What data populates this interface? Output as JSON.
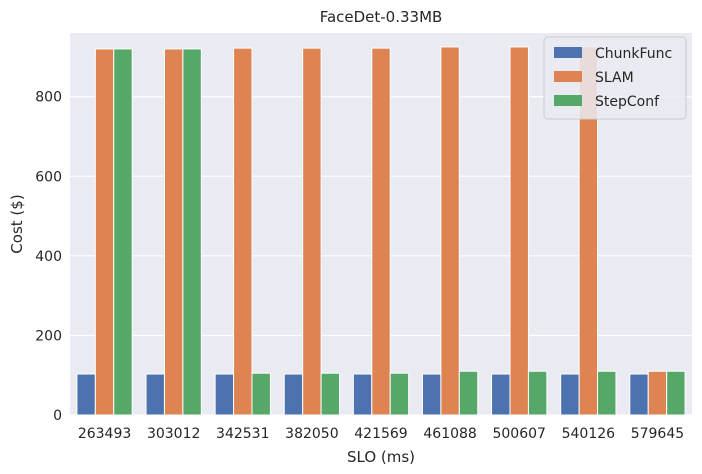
{
  "chart_data": {
    "type": "bar",
    "title": "FaceDet-0.33MB",
    "xlabel": "SLO (ms)",
    "ylabel": "Cost ($)",
    "categories": [
      "263493",
      "303012",
      "342531",
      "382050",
      "421569",
      "461088",
      "500607",
      "540126",
      "579645"
    ],
    "series": [
      {
        "name": "ChunkFunc",
        "color": "#4c72b0",
        "values": [
          103,
          103,
          103,
          103,
          103,
          103,
          103,
          103,
          103
        ]
      },
      {
        "name": "SLAM",
        "color": "#dd8452",
        "values": [
          920,
          920,
          922,
          922,
          922,
          925,
          925,
          925,
          110
        ]
      },
      {
        "name": "StepConf",
        "color": "#55a868",
        "values": [
          920,
          920,
          105,
          105,
          105,
          110,
          110,
          110,
          110
        ]
      }
    ],
    "ylim": [
      0,
      960
    ],
    "yticks": [
      0,
      200,
      400,
      600,
      800
    ],
    "grid": true,
    "legend_position": "top-right",
    "background": "#eaeaf2"
  }
}
